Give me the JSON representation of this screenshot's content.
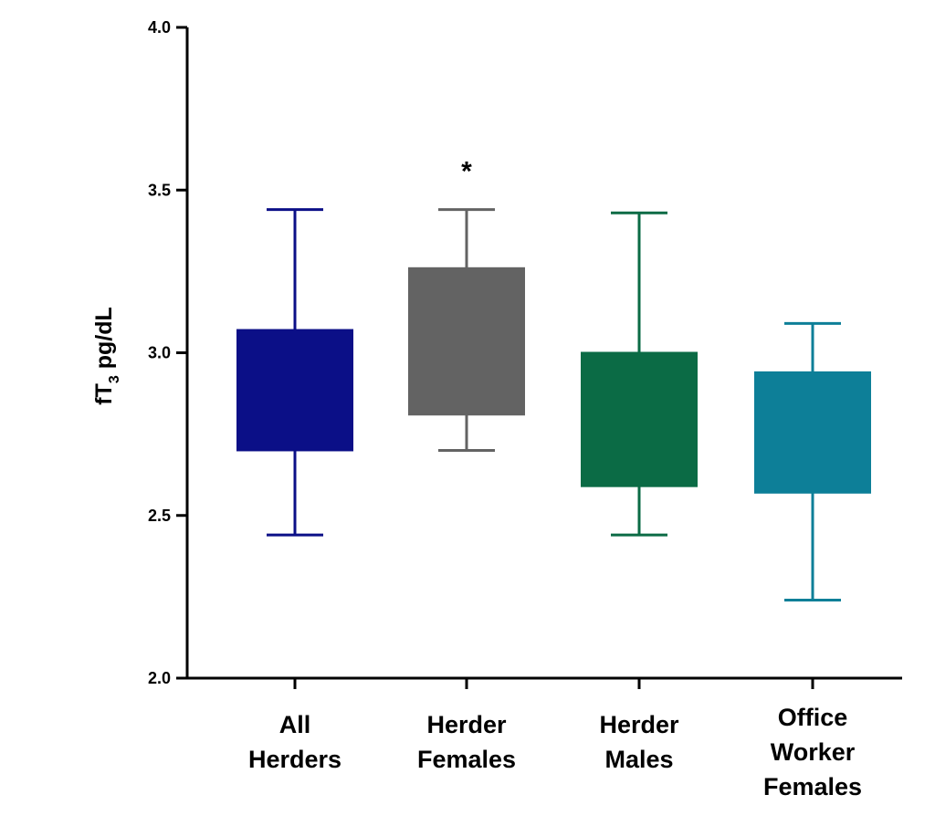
{
  "chart_data": {
    "type": "box",
    "title": "",
    "xlabel": "",
    "ylabel": {
      "main": "fT",
      "sub": "3",
      "unit": " pg/dL"
    },
    "ylim": [
      2.0,
      4.0
    ],
    "yticks": [
      "2.0",
      "2.5",
      "3.0",
      "3.5",
      "4.0"
    ],
    "grid": false,
    "categories": [
      {
        "label_lines": [
          "All",
          "Herders"
        ],
        "color": "#0b0f87",
        "min": 2.44,
        "q1": 2.7,
        "q3": 3.07,
        "max": 3.44,
        "annotation": ""
      },
      {
        "label_lines": [
          "Herder",
          "Females"
        ],
        "color": "#636363",
        "min": 2.7,
        "q1": 2.81,
        "q3": 3.26,
        "max": 3.44,
        "annotation": "*"
      },
      {
        "label_lines": [
          "Herder",
          "Males"
        ],
        "color": "#0b6b45",
        "min": 2.44,
        "q1": 2.59,
        "q3": 3.0,
        "max": 3.43,
        "annotation": ""
      },
      {
        "label_lines": [
          "Office",
          "Worker",
          "Females"
        ],
        "color": "#0d7f98",
        "min": 2.24,
        "q1": 2.57,
        "q3": 2.94,
        "max": 3.09,
        "annotation": ""
      }
    ]
  }
}
